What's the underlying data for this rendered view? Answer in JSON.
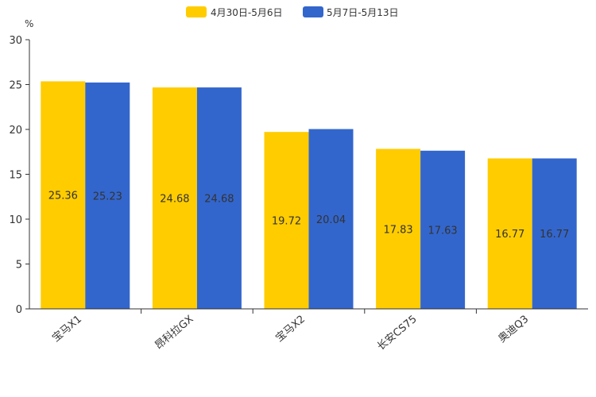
{
  "chart_data": {
    "type": "bar",
    "title": "",
    "xlabel": "",
    "ylabel": "%",
    "ylim": [
      0,
      30
    ],
    "yticks": [
      0,
      5,
      10,
      15,
      20,
      25,
      30
    ],
    "categories": [
      "宝马X1",
      "昂科拉GX",
      "宝马X2",
      "长安CS75",
      "奥迪Q3"
    ],
    "series": [
      {
        "name": "4月30日-5月6日",
        "color": "#FFCC00",
        "values": [
          25.36,
          24.68,
          19.72,
          17.83,
          16.77
        ]
      },
      {
        "name": "5月7日-5月13日",
        "color": "#3366CC",
        "values": [
          25.23,
          24.68,
          20.04,
          17.63,
          16.77
        ]
      }
    ],
    "legend_position": "top-center",
    "grid": false
  }
}
